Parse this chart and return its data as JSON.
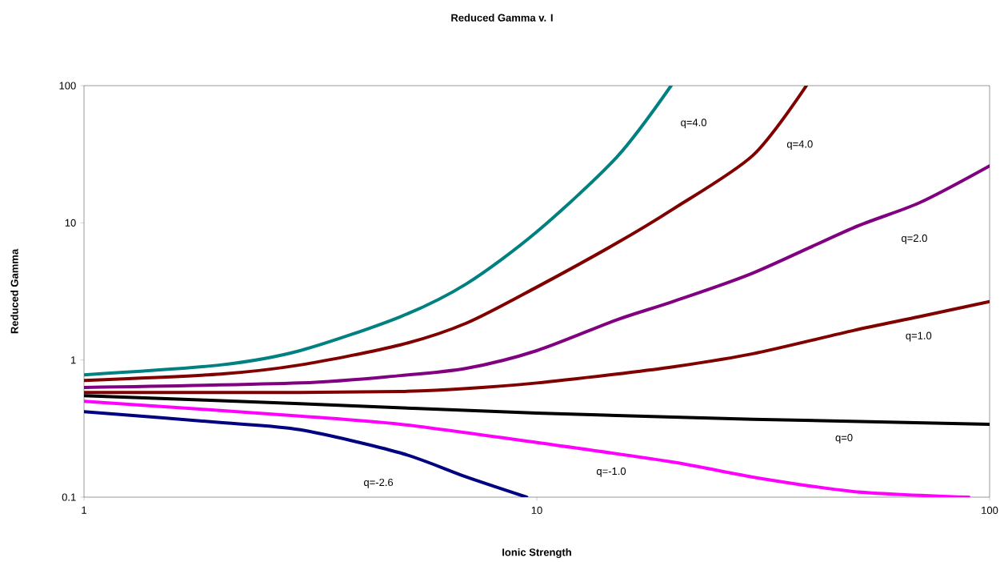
{
  "chart_data": {
    "type": "line",
    "title": "Reduced Gamma v. I",
    "xlabel": "Ionic Strength",
    "ylabel": "Reduced Gamma",
    "log": "xy",
    "xlim": [
      1,
      100
    ],
    "ylim": [
      0.1,
      100
    ],
    "xticks": [
      1,
      10,
      100
    ],
    "yticks": [
      0.1,
      1,
      10,
      100
    ],
    "grid": false,
    "series": [
      {
        "name": "q=4.0",
        "color": "#008080",
        "x": [
          1,
          2,
          3,
          5,
          7,
          10,
          15,
          19.8
        ],
        "values": [
          0.78,
          0.92,
          1.17,
          2.07,
          3.6,
          8.6,
          30,
          100
        ]
      },
      {
        "name": "q=4.0",
        "color": "#800000",
        "x": [
          1,
          2,
          3,
          5,
          7,
          10,
          15,
          20,
          30,
          39.4
        ],
        "values": [
          0.71,
          0.79,
          0.92,
          1.29,
          1.86,
          3.4,
          7.1,
          12.6,
          31,
          100
        ]
      },
      {
        "name": "q=2.0",
        "color": "#800080",
        "x": [
          1,
          3,
          5,
          7,
          10,
          15,
          20,
          30,
          50,
          70,
          100
        ],
        "values": [
          0.63,
          0.68,
          0.77,
          0.87,
          1.17,
          1.96,
          2.67,
          4.3,
          9.2,
          14,
          26
        ]
      },
      {
        "name": "q=1.0",
        "color": "#800000",
        "x": [
          1,
          3,
          5,
          7,
          10,
          15,
          20,
          30,
          50,
          70,
          100
        ],
        "values": [
          0.58,
          0.58,
          0.59,
          0.62,
          0.68,
          0.79,
          0.89,
          1.11,
          1.64,
          2.07,
          2.67
        ]
      },
      {
        "name": "q=0",
        "color": "#000000",
        "x": [
          1,
          3,
          10,
          30,
          100
        ],
        "values": [
          0.55,
          0.48,
          0.41,
          0.37,
          0.34
        ]
      },
      {
        "name": "q=-1.0",
        "color": "#ff00ff",
        "x": [
          1,
          3,
          5,
          10,
          20,
          30,
          50,
          90
        ],
        "values": [
          0.5,
          0.39,
          0.34,
          0.25,
          0.18,
          0.14,
          0.11,
          0.1
        ]
      },
      {
        "name": "q=-2.6",
        "color": "#000080",
        "x": [
          1,
          2,
          3,
          5,
          7,
          9.5
        ],
        "values": [
          0.42,
          0.35,
          0.31,
          0.21,
          0.14,
          0.1
        ]
      }
    ]
  }
}
